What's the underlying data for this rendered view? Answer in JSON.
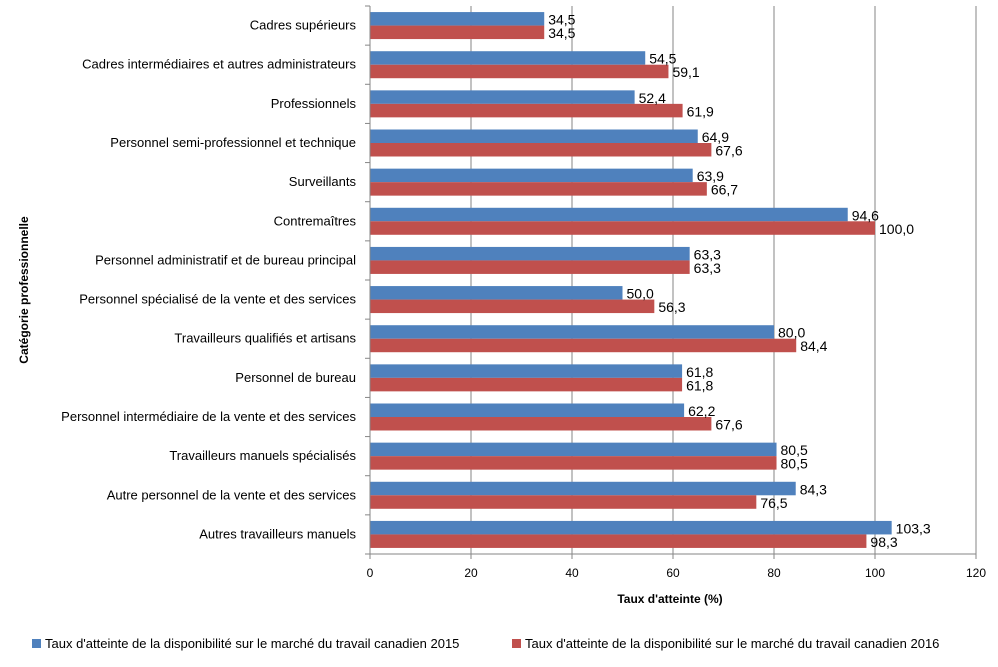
{
  "chart_data": {
    "type": "bar",
    "orientation": "horizontal",
    "title": "",
    "xlabel": "Taux d'atteinte (%)",
    "ylabel": "Catégorie professionnelle",
    "xlim": [
      0,
      120
    ],
    "xticks": [
      0,
      20,
      40,
      60,
      80,
      100,
      120
    ],
    "grid": true,
    "legend_position": "bottom",
    "categories": [
      "Cadres supérieurs",
      "Cadres intermédiaires et autres administrateurs",
      "Professionnels",
      "Personnel semi-professionnel et technique",
      "Surveillants",
      "Contremaîtres",
      "Personnel administratif et de bureau principal",
      "Personnel spécialisé de la vente et des services",
      "Travailleurs qualifiés et artisans",
      "Personnel de bureau",
      "Personnel intermédiaire de la vente et des services",
      "Travailleurs manuels spécialisés",
      "Autre personnel de la vente et des services",
      "Autres travailleurs manuels"
    ],
    "series": [
      {
        "name": "Taux d'atteinte de la disponibilité sur le marché du travail canadien 2015",
        "color": "#4F81BD",
        "values": [
          34.5,
          54.5,
          52.4,
          64.9,
          63.9,
          94.6,
          63.3,
          50.0,
          80.0,
          61.8,
          62.2,
          80.5,
          84.3,
          103.3
        ],
        "labels": [
          "34,5",
          "54,5",
          "52,4",
          "64,9",
          "63,9",
          "94,6",
          "63,3",
          "50,0",
          "80,0",
          "61,8",
          "62,2",
          "80,5",
          "84,3",
          "103,3"
        ]
      },
      {
        "name": "Taux d'atteinte de la disponibilité sur le marché du travail canadien 2016",
        "color": "#C0504D",
        "values": [
          34.5,
          59.1,
          61.9,
          67.6,
          66.7,
          100.0,
          63.3,
          56.3,
          84.4,
          61.8,
          67.6,
          80.5,
          76.5,
          98.3
        ],
        "labels": [
          "34,5",
          "59,1",
          "61,9",
          "67,6",
          "66,7",
          "100,0",
          "63,3",
          "56,3",
          "84,4",
          "61,8",
          "67,6",
          "80,5",
          "76,5",
          "98,3"
        ]
      }
    ]
  }
}
